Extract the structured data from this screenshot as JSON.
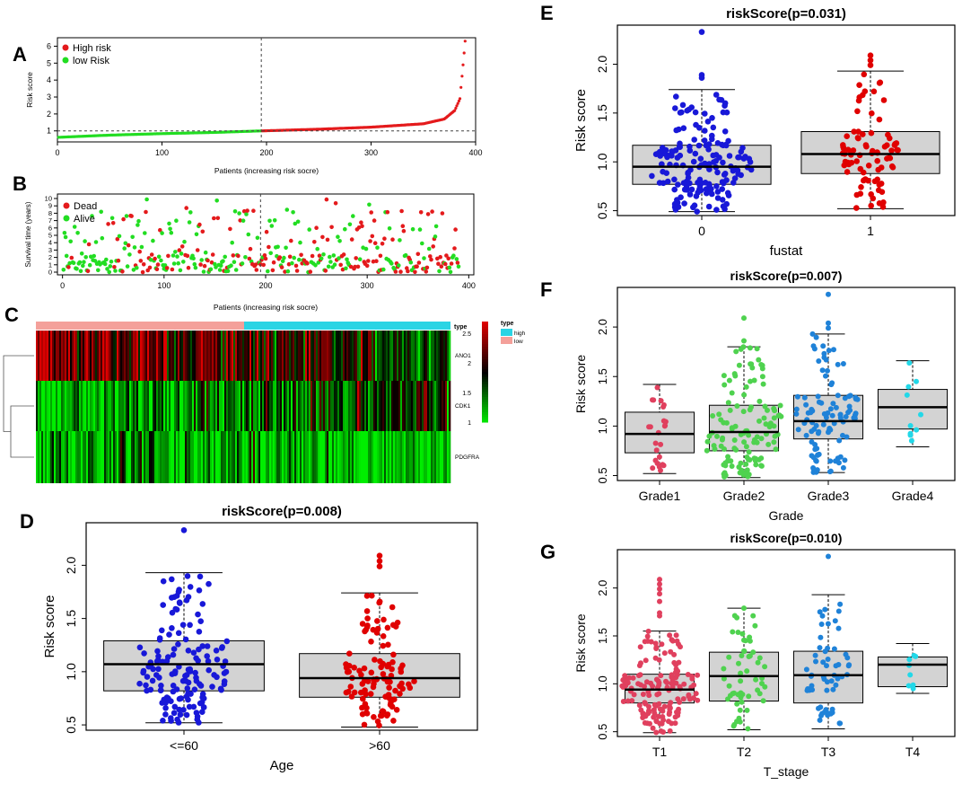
{
  "colors": {
    "high": "#e41a1c",
    "low": "#22dd22",
    "blue": "#1818d8",
    "red": "#e00000",
    "pink": "#e0405e",
    "green": "#4fd24f",
    "sky": "#1f82d8",
    "cyan": "#22d8e8",
    "box_fill": "#d3d3d3",
    "hm_green": "#00ee00",
    "hm_black": "#000000",
    "hm_red": "#dd0000",
    "bar_pink": "#f4a09a",
    "bar_cyan": "#2ad4e4"
  },
  "panels": {
    "A": "A",
    "B": "B",
    "C": "C",
    "D": "D",
    "E": "E",
    "F": "F",
    "G": "G"
  },
  "chart_data": [
    {
      "id": "A",
      "type": "scatter",
      "title": "",
      "xlabel": "Patients (increasing risk socre)",
      "ylabel": "Risk score",
      "xlim": [
        0,
        400
      ],
      "ylim": [
        0.35,
        6.5
      ],
      "xticks": [
        "0",
        "100",
        "200",
        "300",
        "400"
      ],
      "yticks": [
        "1",
        "2",
        "3",
        "4",
        "5",
        "6"
      ],
      "cutoff_x": 195,
      "cutoff_y": 1.0,
      "legend": [
        "High risk",
        "low Risk"
      ],
      "n_patients": 390,
      "points": [
        [
          0,
          0.62
        ],
        [
          50,
          0.75
        ],
        [
          100,
          0.84
        ],
        [
          150,
          0.91
        ],
        [
          195,
          1.0
        ],
        [
          250,
          1.1
        ],
        [
          300,
          1.22
        ],
        [
          350,
          1.42
        ],
        [
          370,
          1.7
        ],
        [
          380,
          2.2
        ],
        [
          385,
          2.9
        ],
        [
          388,
          4.9
        ],
        [
          390,
          6.3
        ]
      ]
    },
    {
      "id": "B",
      "type": "scatter",
      "title": "",
      "xlabel": "Patients (increasing risk socre)",
      "ylabel": "Survival time (years)",
      "xlim": [
        0,
        400
      ],
      "ylim": [
        0,
        10
      ],
      "xticks": [
        "0",
        "100",
        "200",
        "300",
        "400"
      ],
      "yticks": [
        "0",
        "1",
        "2",
        "3",
        "4",
        "5",
        "6",
        "7",
        "8",
        "9",
        "10"
      ],
      "cutoff_x": 195,
      "legend": [
        "Dead",
        "Alive"
      ],
      "n_points": 390
    },
    {
      "id": "C",
      "type": "heatmap",
      "genes": [
        "ANO1",
        "CDK1",
        "PDGFRA"
      ],
      "legend_title": "type",
      "groups": [
        "high",
        "low"
      ],
      "scale_ticks": [
        "2.5",
        "2",
        "1.5",
        "1"
      ]
    },
    {
      "id": "D",
      "type": "box",
      "title": "riskScore(p=0.008)",
      "xlabel": "Age",
      "ylabel": "Risk score",
      "categories": [
        "<=60",
        ">60"
      ],
      "ylim": [
        0.45,
        2.4
      ],
      "yticks": [
        "0.5",
        "1.0",
        "1.5",
        "2.0"
      ],
      "boxes": [
        {
          "min": 0.52,
          "q1": 0.82,
          "median": 1.07,
          "q3": 1.29,
          "max": 1.93,
          "n": 150
        },
        {
          "min": 0.48,
          "q1": 0.76,
          "median": 0.94,
          "q3": 1.17,
          "max": 1.74,
          "n": 110
        }
      ],
      "outliers": [
        [
          0,
          2.33
        ],
        [
          1,
          2.09
        ],
        [
          1,
          2.04
        ],
        [
          1,
          1.99
        ]
      ]
    },
    {
      "id": "E",
      "type": "box",
      "title": "riskScore(p=0.031)",
      "xlabel": "fustat",
      "ylabel": "Risk score",
      "categories": [
        "0",
        "1"
      ],
      "ylim": [
        0.45,
        2.4
      ],
      "yticks": [
        "0.5",
        "1.0",
        "1.5",
        "2.0"
      ],
      "boxes": [
        {
          "min": 0.49,
          "q1": 0.77,
          "median": 0.95,
          "q3": 1.17,
          "max": 1.74,
          "n": 170
        },
        {
          "min": 0.52,
          "q1": 0.88,
          "median": 1.08,
          "q3": 1.31,
          "max": 1.93,
          "n": 85
        }
      ],
      "outliers": [
        [
          0,
          2.33
        ],
        [
          0,
          1.89
        ],
        [
          0,
          1.86
        ],
        [
          1,
          2.09
        ],
        [
          1,
          2.04
        ],
        [
          1,
          1.99
        ]
      ]
    },
    {
      "id": "F",
      "type": "box",
      "title": "riskScore(p=0.007)",
      "xlabel": "Grade",
      "ylabel": "Risk score",
      "categories": [
        "Grade1",
        "Grade2",
        "Grade3",
        "Grade4"
      ],
      "ylim": [
        0.45,
        2.4
      ],
      "yticks": [
        "0.5",
        "1.0",
        "1.5",
        "2.0"
      ],
      "boxes": [
        {
          "min": 0.52,
          "q1": 0.73,
          "median": 0.92,
          "q3": 1.14,
          "max": 1.42,
          "n": 24
        },
        {
          "min": 0.48,
          "q1": 0.75,
          "median": 0.94,
          "q3": 1.21,
          "max": 1.8,
          "n": 120
        },
        {
          "min": 0.53,
          "q1": 0.87,
          "median": 1.05,
          "q3": 1.31,
          "max": 1.93,
          "n": 100
        },
        {
          "min": 0.79,
          "q1": 0.97,
          "median": 1.19,
          "q3": 1.37,
          "max": 1.66,
          "n": 10
        }
      ],
      "outliers": [
        [
          1,
          2.09
        ],
        [
          1,
          1.86
        ],
        [
          2,
          2.33
        ],
        [
          2,
          2.04
        ],
        [
          2,
          1.99
        ]
      ]
    },
    {
      "id": "G",
      "type": "box",
      "title": "riskScore(p=0.010)",
      "xlabel": "T_stage",
      "ylabel": "Risk score",
      "categories": [
        "T1",
        "T2",
        "T3",
        "T4"
      ],
      "ylim": [
        0.45,
        2.4
      ],
      "yticks": [
        "0.5",
        "1.0",
        "1.5",
        "2.0"
      ],
      "boxes": [
        {
          "min": 0.49,
          "q1": 0.8,
          "median": 0.94,
          "q3": 1.1,
          "max": 1.55,
          "n": 150
        },
        {
          "min": 0.52,
          "q1": 0.82,
          "median": 1.08,
          "q3": 1.33,
          "max": 1.79,
          "n": 55
        },
        {
          "min": 0.53,
          "q1": 0.8,
          "median": 1.09,
          "q3": 1.34,
          "max": 1.93,
          "n": 60
        },
        {
          "min": 0.9,
          "q1": 0.97,
          "median": 1.2,
          "q3": 1.28,
          "max": 1.42,
          "n": 8
        }
      ],
      "outliers": [
        [
          0,
          2.09
        ],
        [
          0,
          2.04
        ],
        [
          0,
          1.99
        ],
        [
          0,
          1.94
        ],
        [
          0,
          1.86
        ],
        [
          0,
          1.74
        ],
        [
          0,
          1.71
        ],
        [
          1,
          1.79
        ],
        [
          2,
          2.33
        ]
      ]
    }
  ]
}
